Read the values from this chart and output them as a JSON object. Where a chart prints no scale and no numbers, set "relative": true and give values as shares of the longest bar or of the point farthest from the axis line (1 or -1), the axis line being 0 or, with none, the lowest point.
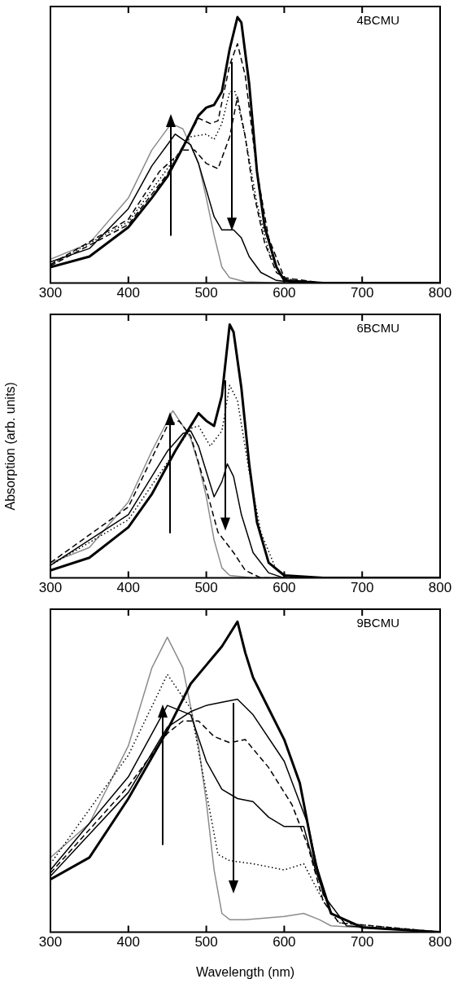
{
  "chart_data": [
    {
      "type": "line",
      "title": "4BCMU",
      "relative": true,
      "xlim": [
        300,
        800
      ],
      "xticks": [
        300,
        400,
        500,
        600,
        700,
        800
      ],
      "tick_labels": "x",
      "series": [
        {
          "color": "#000000",
          "line_style": "solid",
          "x": [
            300,
            350,
            400,
            430,
            450,
            470,
            490,
            500,
            510,
            520,
            530,
            540,
            545,
            555,
            565,
            575,
            590,
            600,
            650,
            700,
            800
          ],
          "values": [
            0.06,
            0.1,
            0.21,
            0.32,
            0.4,
            0.51,
            0.63,
            0.66,
            0.67,
            0.72,
            0.88,
            1.0,
            0.98,
            0.75,
            0.42,
            0.21,
            0.06,
            0.01,
            0,
            0,
            0
          ]
        },
        {
          "color": "#000000",
          "line_style": "dashed",
          "x": [
            300,
            400,
            450,
            490,
            505,
            515,
            530,
            540,
            550,
            565,
            580,
            600,
            650,
            800
          ],
          "values": [
            0.065,
            0.22,
            0.41,
            0.62,
            0.6,
            0.61,
            0.82,
            0.9,
            0.78,
            0.42,
            0.17,
            0.02,
            0,
            0
          ]
        },
        {
          "color": "#000000",
          "line_style": "dotted",
          "x": [
            300,
            400,
            450,
            480,
            500,
            510,
            520,
            530,
            537,
            550,
            565,
            580,
            595,
            620,
            800
          ],
          "values": [
            0.07,
            0.23,
            0.43,
            0.55,
            0.56,
            0.54,
            0.6,
            0.72,
            0.72,
            0.55,
            0.3,
            0.12,
            0.03,
            0,
            0
          ]
        },
        {
          "color": "#000000",
          "line_style": "dashed",
          "x": [
            300,
            400,
            440,
            470,
            485,
            500,
            515,
            530,
            540,
            550,
            560,
            575,
            590,
            610,
            800
          ],
          "values": [
            0.07,
            0.24,
            0.42,
            0.5,
            0.5,
            0.45,
            0.43,
            0.55,
            0.7,
            0.55,
            0.35,
            0.15,
            0.04,
            0,
            0
          ]
        },
        {
          "color": "#000000",
          "line_style": "solid",
          "x": [
            300,
            350,
            400,
            430,
            460,
            480,
            490,
            500,
            510,
            520,
            535,
            545,
            555,
            570,
            590,
            620,
            800
          ],
          "values": [
            0.08,
            0.13,
            0.28,
            0.44,
            0.56,
            0.52,
            0.45,
            0.35,
            0.25,
            0.2,
            0.2,
            0.17,
            0.1,
            0.04,
            0.01,
            0,
            0
          ]
        },
        {
          "color": "#8c8c8c",
          "line_style": "solid",
          "x": [
            300,
            350,
            400,
            430,
            455,
            470,
            490,
            500,
            510,
            520,
            530,
            550,
            600,
            800
          ],
          "values": [
            0.09,
            0.15,
            0.32,
            0.5,
            0.6,
            0.58,
            0.45,
            0.32,
            0.18,
            0.06,
            0.02,
            0.005,
            0,
            0
          ]
        }
      ]
    },
    {
      "type": "line",
      "title": "6BCMU",
      "ylabel": "Absorption (arb. units)",
      "relative": true,
      "xlim": [
        300,
        800
      ],
      "xticks": [
        300,
        400,
        500,
        600,
        700,
        800
      ],
      "tick_labels": "x",
      "series": [
        {
          "color": "#000000",
          "line_style": "solid",
          "x": [
            300,
            350,
            400,
            430,
            460,
            480,
            490,
            500,
            510,
            520,
            530,
            535,
            545,
            555,
            565,
            580,
            600,
            650,
            800
          ],
          "values": [
            0.03,
            0.08,
            0.2,
            0.33,
            0.5,
            0.6,
            0.65,
            0.62,
            0.6,
            0.72,
            1.0,
            0.97,
            0.75,
            0.45,
            0.22,
            0.06,
            0.01,
            0,
            0
          ]
        },
        {
          "color": "#000000",
          "line_style": "dotted",
          "x": [
            300,
            400,
            480,
            490,
            505,
            520,
            530,
            540,
            555,
            570,
            590,
            610,
            800
          ],
          "values": [
            0.05,
            0.23,
            0.59,
            0.6,
            0.52,
            0.58,
            0.76,
            0.7,
            0.42,
            0.18,
            0.03,
            0,
            0
          ]
        },
        {
          "color": "#000000",
          "line_style": "solid",
          "x": [
            300,
            400,
            450,
            470,
            480,
            490,
            500,
            510,
            520,
            527,
            535,
            545,
            560,
            580,
            600,
            800
          ],
          "values": [
            0.05,
            0.25,
            0.5,
            0.57,
            0.58,
            0.52,
            0.42,
            0.32,
            0.38,
            0.45,
            0.4,
            0.25,
            0.1,
            0.02,
            0,
            0
          ]
        },
        {
          "color": "#000000",
          "line_style": "dashed",
          "x": [
            300,
            400,
            450,
            465,
            480,
            500,
            515,
            525,
            535,
            550,
            570,
            800
          ],
          "values": [
            0.06,
            0.28,
            0.6,
            0.62,
            0.56,
            0.35,
            0.18,
            0.14,
            0.1,
            0.03,
            0,
            0
          ]
        },
        {
          "color": "#8c8c8c",
          "line_style": "solid",
          "x": [
            300,
            350,
            400,
            430,
            457,
            470,
            480,
            490,
            500,
            510,
            520,
            530,
            560,
            800
          ],
          "values": [
            0.06,
            0.12,
            0.3,
            0.5,
            0.66,
            0.6,
            0.55,
            0.45,
            0.32,
            0.15,
            0.04,
            0.01,
            0,
            0
          ]
        }
      ]
    },
    {
      "type": "line",
      "title": "9BCMU",
      "xlabel": "Wavelength (nm)",
      "relative": true,
      "xlim": [
        300,
        800
      ],
      "xticks": [
        300,
        400,
        500,
        600,
        700,
        800
      ],
      "tick_labels": "x",
      "series": [
        {
          "color": "#000000",
          "line_style": "solid",
          "x": [
            300,
            350,
            400,
            450,
            480,
            500,
            520,
            540,
            550,
            560,
            580,
            600,
            620,
            640,
            660,
            700,
            800
          ],
          "values": [
            0.17,
            0.24,
            0.43,
            0.65,
            0.8,
            0.86,
            0.92,
            1.0,
            0.9,
            0.82,
            0.72,
            0.62,
            0.48,
            0.22,
            0.06,
            0.015,
            0
          ]
        },
        {
          "color": "#000000",
          "line_style": "solid",
          "x": [
            300,
            400,
            450,
            480,
            500,
            520,
            540,
            560,
            600,
            630,
            650,
            680,
            800
          ],
          "values": [
            0.18,
            0.45,
            0.66,
            0.71,
            0.73,
            0.74,
            0.75,
            0.7,
            0.55,
            0.35,
            0.12,
            0.02,
            0
          ]
        },
        {
          "color": "#000000",
          "line_style": "dashed",
          "x": [
            300,
            400,
            450,
            470,
            490,
            510,
            530,
            550,
            580,
            610,
            630,
            650,
            670,
            800
          ],
          "values": [
            0.19,
            0.47,
            0.64,
            0.68,
            0.68,
            0.63,
            0.61,
            0.62,
            0.53,
            0.41,
            0.28,
            0.1,
            0.03,
            0
          ]
        },
        {
          "color": "#000000",
          "line_style": "solid",
          "x": [
            300,
            400,
            450,
            480,
            500,
            520,
            540,
            560,
            580,
            600,
            625,
            640,
            660,
            700,
            800
          ],
          "values": [
            0.2,
            0.5,
            0.73,
            0.7,
            0.55,
            0.46,
            0.43,
            0.42,
            0.37,
            0.34,
            0.34,
            0.2,
            0.06,
            0.015,
            0
          ]
        },
        {
          "color": "#000000",
          "line_style": "dotted",
          "x": [
            300,
            400,
            450,
            480,
            500,
            515,
            530,
            560,
            600,
            625,
            650,
            670,
            800
          ],
          "values": [
            0.22,
            0.57,
            0.83,
            0.72,
            0.45,
            0.25,
            0.23,
            0.22,
            0.2,
            0.22,
            0.1,
            0.03,
            0
          ]
        },
        {
          "color": "#8c8c8c",
          "line_style": "solid",
          "x": [
            300,
            350,
            400,
            430,
            450,
            470,
            490,
            500,
            510,
            520,
            530,
            550,
            600,
            625,
            645,
            660,
            800
          ],
          "values": [
            0.24,
            0.35,
            0.6,
            0.85,
            0.95,
            0.85,
            0.6,
            0.42,
            0.2,
            0.06,
            0.04,
            0.04,
            0.05,
            0.06,
            0.04,
            0.02,
            0
          ]
        }
      ]
    }
  ]
}
